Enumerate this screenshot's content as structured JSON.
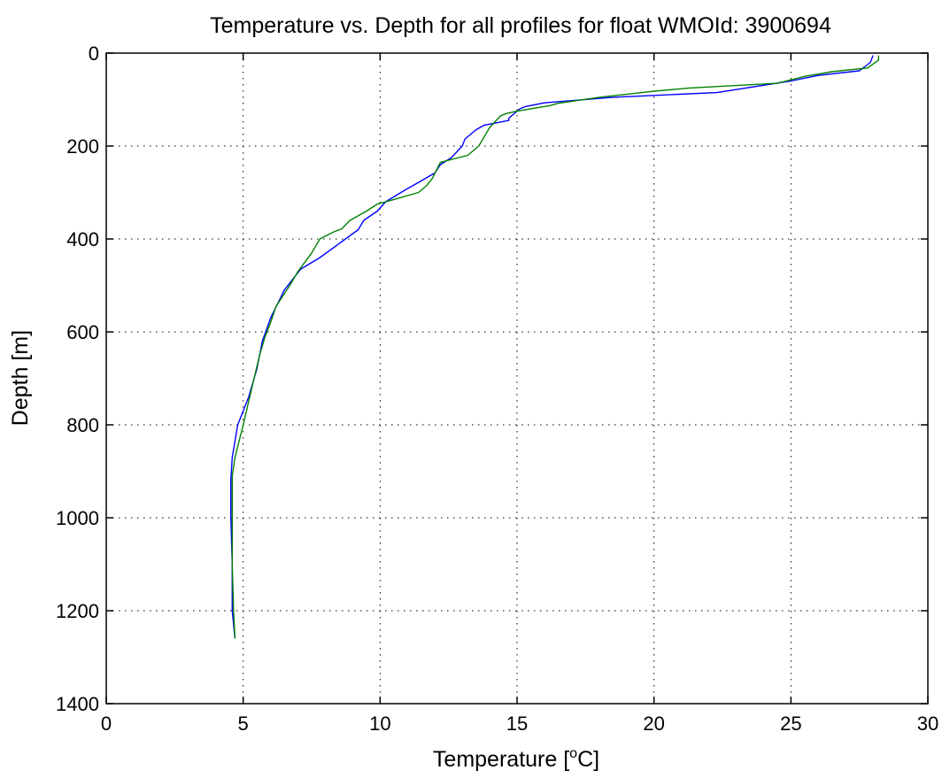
{
  "chart_data": {
    "type": "line",
    "title": "Temperature vs. Depth for all profiles for float WMOId: 3900694",
    "xlabel_prefix": "Temperature [",
    "xlabel_sup": "o",
    "xlabel_suffix": "C]",
    "ylabel": "Depth [m]",
    "xlim": [
      0,
      30
    ],
    "ylim": [
      0,
      1400
    ],
    "y_reversed": true,
    "grid": true,
    "xticks": [
      0,
      5,
      10,
      15,
      20,
      25,
      30
    ],
    "yticks": [
      0,
      200,
      400,
      600,
      800,
      1000,
      1200,
      1400
    ],
    "series": [
      {
        "color": "#0000ff",
        "points": [
          [
            28.0,
            5
          ],
          [
            27.9,
            20
          ],
          [
            27.5,
            38
          ],
          [
            26.0,
            48
          ],
          [
            25.0,
            60
          ],
          [
            22.3,
            85
          ],
          [
            18.5,
            95
          ],
          [
            16.0,
            107
          ],
          [
            15.3,
            115
          ],
          [
            15.1,
            120
          ],
          [
            14.7,
            140
          ],
          [
            14.7,
            145
          ],
          [
            13.8,
            155
          ],
          [
            13.5,
            165
          ],
          [
            13.1,
            185
          ],
          [
            13.0,
            200
          ],
          [
            12.6,
            225
          ],
          [
            12.2,
            240
          ],
          [
            12.0,
            258
          ],
          [
            11.5,
            275
          ],
          [
            10.9,
            295
          ],
          [
            10.2,
            320
          ],
          [
            9.9,
            340
          ],
          [
            9.4,
            360
          ],
          [
            9.2,
            380
          ],
          [
            8.5,
            410
          ],
          [
            7.8,
            440
          ],
          [
            7.1,
            465
          ],
          [
            6.5,
            510
          ],
          [
            6.0,
            570
          ],
          [
            5.7,
            620
          ],
          [
            5.5,
            680
          ],
          [
            5.2,
            740
          ],
          [
            4.8,
            800
          ],
          [
            4.6,
            870
          ],
          [
            4.55,
            920
          ],
          [
            4.55,
            1000
          ],
          [
            4.6,
            1100
          ],
          [
            4.6,
            1200
          ],
          [
            4.7,
            1260
          ]
        ]
      },
      {
        "color": "#008000",
        "points": [
          [
            28.2,
            5
          ],
          [
            28.2,
            15
          ],
          [
            27.8,
            32
          ],
          [
            26.5,
            40
          ],
          [
            25.5,
            50
          ],
          [
            24.5,
            65
          ],
          [
            21.3,
            75
          ],
          [
            20.0,
            82
          ],
          [
            18.0,
            95
          ],
          [
            16.5,
            108
          ],
          [
            16.2,
            113
          ],
          [
            15.0,
            125
          ],
          [
            14.6,
            130
          ],
          [
            14.4,
            135
          ],
          [
            14.0,
            160
          ],
          [
            13.7,
            190
          ],
          [
            13.6,
            200
          ],
          [
            13.2,
            220
          ],
          [
            12.2,
            235
          ],
          [
            11.9,
            270
          ],
          [
            11.7,
            285
          ],
          [
            11.4,
            300
          ],
          [
            10.5,
            315
          ],
          [
            9.9,
            325
          ],
          [
            9.5,
            340
          ],
          [
            8.9,
            360
          ],
          [
            8.6,
            378
          ],
          [
            8.3,
            385
          ],
          [
            7.8,
            400
          ],
          [
            7.5,
            430
          ],
          [
            7.0,
            470
          ],
          [
            6.7,
            500
          ],
          [
            6.2,
            545
          ],
          [
            6.0,
            580
          ],
          [
            5.8,
            610
          ],
          [
            5.6,
            650
          ],
          [
            5.4,
            700
          ],
          [
            5.0,
            800
          ],
          [
            4.7,
            870
          ],
          [
            4.6,
            910
          ],
          [
            4.6,
            1000
          ],
          [
            4.6,
            1100
          ],
          [
            4.65,
            1200
          ],
          [
            4.7,
            1260
          ]
        ]
      }
    ]
  }
}
